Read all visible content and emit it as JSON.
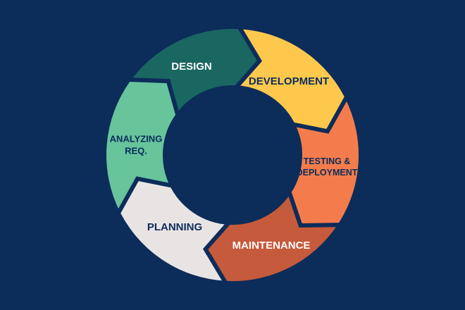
{
  "background_color": "#0c2c5a",
  "stages": [
    {
      "id": "design",
      "lines": [
        "DESIGN"
      ],
      "color": "#1a6661",
      "text_color": "#ffffff"
    },
    {
      "id": "development",
      "lines": [
        "DEVELOPMENT"
      ],
      "color": "#fec84d",
      "text_color": "#0c2c5a"
    },
    {
      "id": "testing-deployment",
      "lines": [
        "TESTING &",
        "DEPLOYMENT"
      ],
      "color": "#f47c4c",
      "text_color": "#0c2c5a"
    },
    {
      "id": "maintenance",
      "lines": [
        "MAINTENANCE"
      ],
      "color": "#c65a3c",
      "text_color": "#ffffff"
    },
    {
      "id": "planning",
      "lines": [
        "PLANNING"
      ],
      "color": "#e9e4e4",
      "text_color": "#0c2c5a"
    },
    {
      "id": "analyzing-req",
      "lines": [
        "ANALYZING",
        "REQ."
      ],
      "color": "#67c49b",
      "text_color": "#0c2c5a"
    }
  ]
}
